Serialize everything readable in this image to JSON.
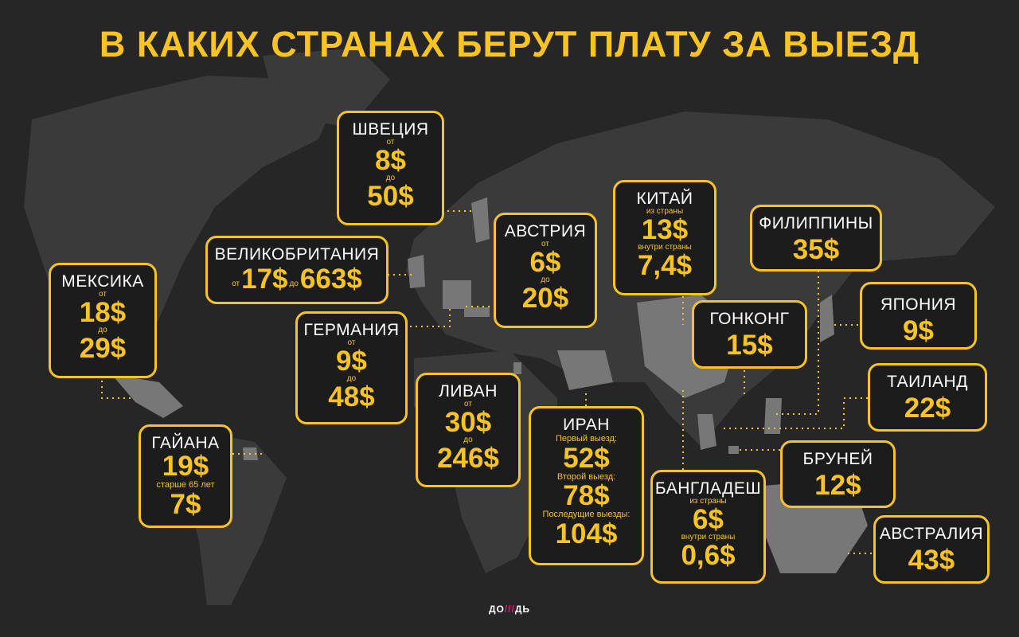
{
  "title": "В КАКИХ СТРАНАХ БЕРУТ ПЛАТУ ЗА ВЫЕЗД",
  "logo": {
    "left": "ДО",
    "mark": "///",
    "right": "ДЬ"
  },
  "colors": {
    "accent": "#f7c325",
    "background": "#262626",
    "land": "#3a3a3a",
    "highlight": "#777777"
  },
  "cards": {
    "sweden": {
      "name": "ШВЕЦИЯ",
      "l1": "от",
      "v1": "8$",
      "l2": "до",
      "v2": "50$"
    },
    "uk": {
      "name": "ВЕЛИКОБРИТАНИЯ",
      "l1": "от",
      "v1": "17$",
      "l2": "до",
      "v2": "663$"
    },
    "mexico": {
      "name": "МЕКСИКА",
      "l1": "от",
      "v1": "18$",
      "l2": "до",
      "v2": "29$"
    },
    "germany": {
      "name": "ГЕРМАНИЯ",
      "l1": "от",
      "v1": "9$",
      "l2": "до",
      "v2": "48$"
    },
    "austria": {
      "name": "АВСТРИЯ",
      "l1": "от",
      "v1": "6$",
      "l2": "до",
      "v2": "20$"
    },
    "china": {
      "name": "КИТАЙ",
      "l1": "из страны",
      "v1": "13$",
      "l2": "внутри страны",
      "v2": "7,4$"
    },
    "philippines": {
      "name": "ФИЛИППИНЫ",
      "v1": "35$"
    },
    "japan": {
      "name": "ЯПОНИЯ",
      "v1": "9$"
    },
    "hongkong": {
      "name": "ГОНКОНГ",
      "v1": "15$"
    },
    "thailand": {
      "name": "ТАИЛАНД",
      "v1": "22$"
    },
    "guyana": {
      "name": "ГАЙАНА",
      "v1": "19$",
      "l2": "старше 65 лет",
      "v2": "7$"
    },
    "lebanon": {
      "name": "ЛИВАН",
      "l1": "от",
      "v1": "30$",
      "l2": "до",
      "v2": "246$"
    },
    "iran": {
      "name": "ИРАН",
      "l1": "Первый выезд:",
      "v1": "52$",
      "l2": "Второй выезд:",
      "v2": "78$",
      "l3": "Последущие выезды:",
      "v3": "104$"
    },
    "brunei": {
      "name": "БРУНЕЙ",
      "v1": "12$"
    },
    "bangladesh": {
      "name": "БАНГЛАДЕШ",
      "l1": "из страны",
      "v1": "6$",
      "l2": "внутри страны",
      "v2": "0,6$"
    },
    "australia": {
      "name": "АВСТРАЛИЯ",
      "v1": "43$"
    }
  }
}
